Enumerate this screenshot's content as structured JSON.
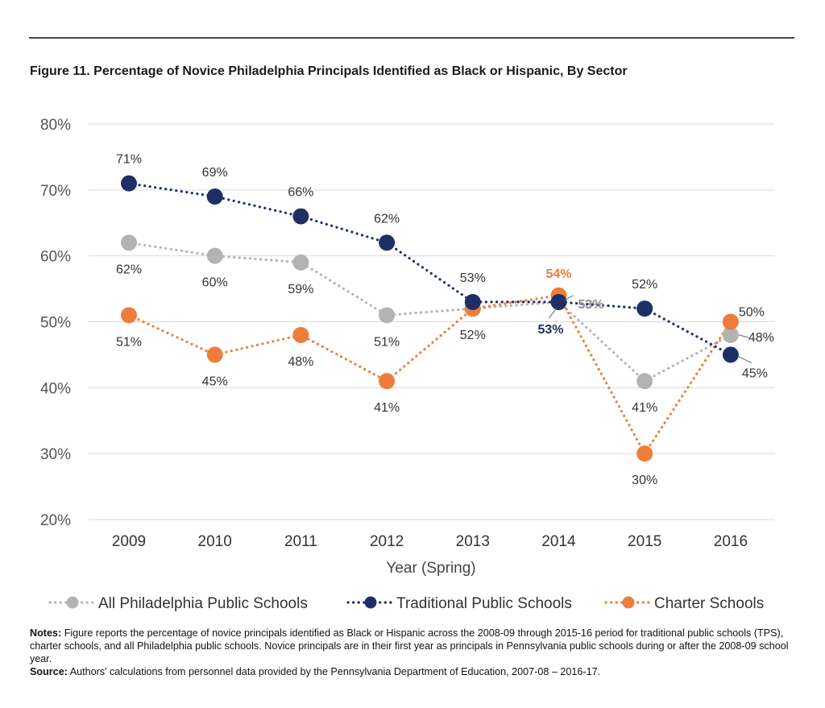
{
  "figure": {
    "title": "Figure 11.  Percentage of Novice Philadelphia Principals Identified as Black or Hispanic, By Sector",
    "notes_label": "Notes:",
    "notes_text": "Figure reports the percentage of novice principals identified as Black or Hispanic across the 2008-09 through 2015-16 period for traditional public schools (TPS), charter schools, and all Philadelphia public schools. Novice principals are in their first year as principals in Pennsylvania public schools during or after the 2008-09 school year.",
    "source_label": "Source:",
    "source_text": "Authors' calculations from personnel data provided by the Pennsylvania Department of Education, 2007-08 – 2016-17."
  },
  "chart_data": {
    "type": "line",
    "title": "",
    "xlabel": "Year (Spring)",
    "ylabel": "",
    "x": [
      "2009",
      "2010",
      "2011",
      "2012",
      "2013",
      "2014",
      "2015",
      "2016"
    ],
    "ylim": [
      20,
      80
    ],
    "yticks": [
      20,
      30,
      40,
      50,
      60,
      70,
      80
    ],
    "ytick_labels": [
      "20%",
      "30%",
      "40%",
      "50%",
      "60%",
      "70%",
      "80%"
    ],
    "grid": true,
    "legend_position": "bottom",
    "series": [
      {
        "name": "All Philadelphia Public Schools",
        "color": "#b3b3b3",
        "values": [
          62,
          60,
          59,
          51,
          52,
          53,
          41,
          48
        ],
        "labels": [
          "62%",
          "60%",
          "59%",
          "51%",
          "",
          "53%",
          "41%",
          "48%"
        ]
      },
      {
        "name": "Traditional Public Schools",
        "color": "#1f2f66",
        "values": [
          71,
          69,
          66,
          62,
          53,
          53,
          52,
          45
        ],
        "labels": [
          "71%",
          "69%",
          "66%",
          "62%",
          "53%",
          "53%",
          "52%",
          "45%"
        ]
      },
      {
        "name": "Charter Schools",
        "color": "#ee7d3b",
        "values": [
          51,
          45,
          48,
          41,
          52,
          54,
          30,
          50
        ],
        "labels": [
          "51%",
          "45%",
          "48%",
          "41%",
          "52%",
          "54%",
          "30%",
          "50%"
        ]
      }
    ]
  }
}
